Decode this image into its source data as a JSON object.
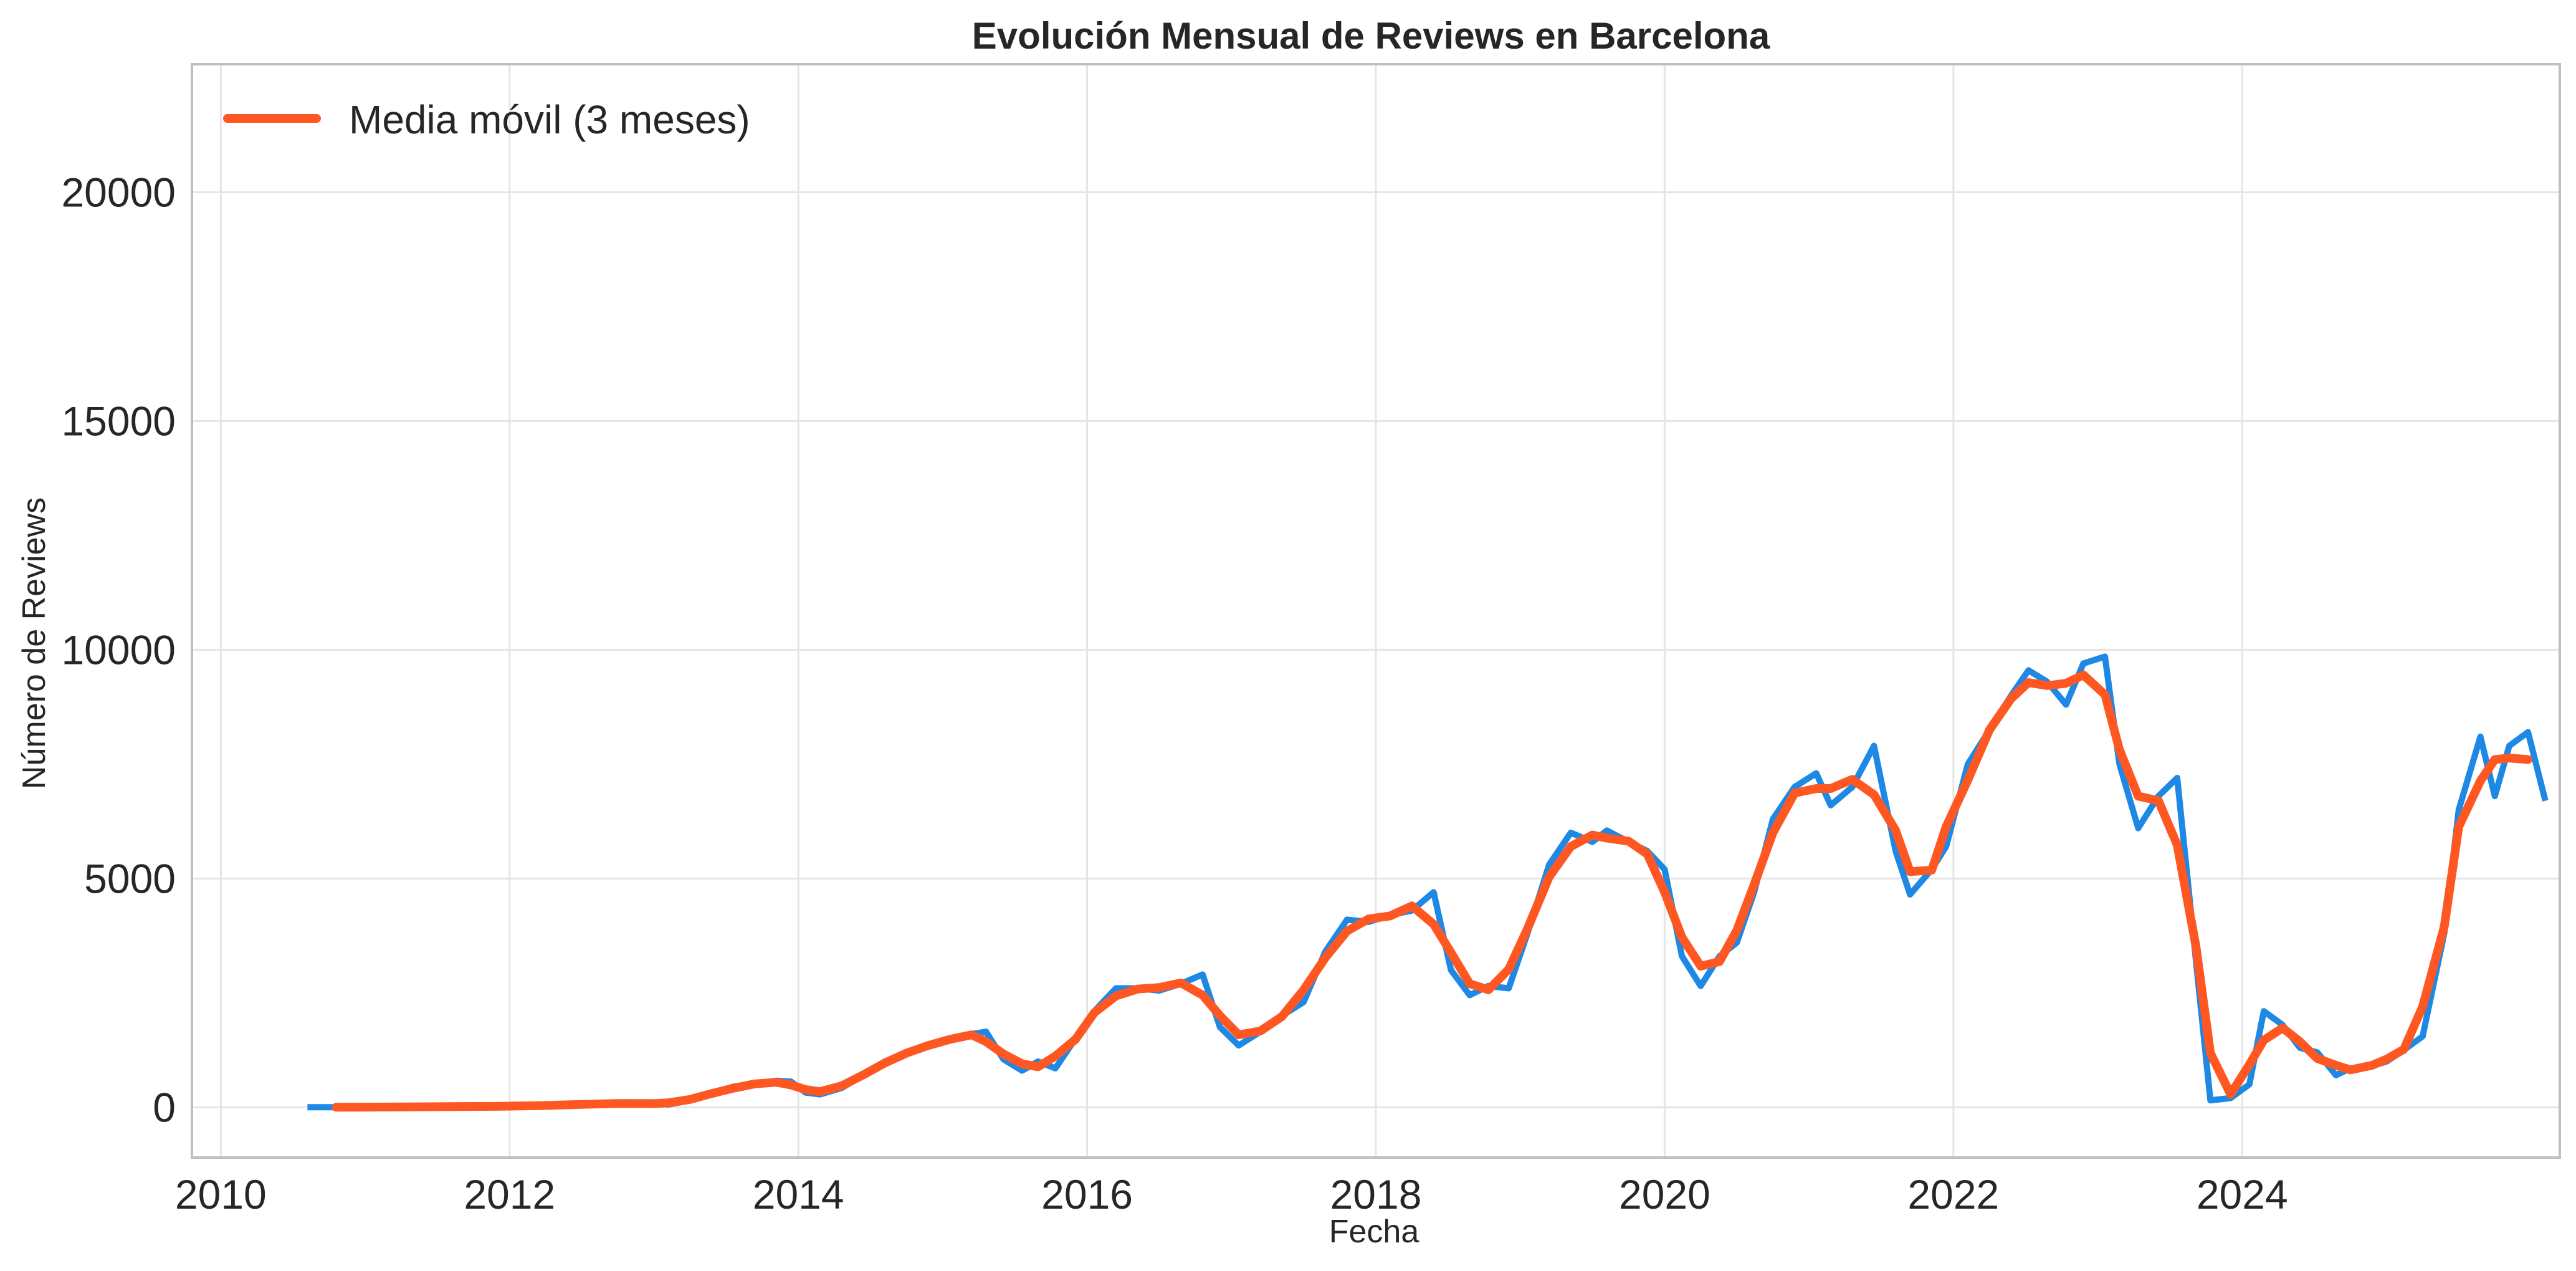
{
  "chart_data": {
    "type": "line",
    "title": "Evolución Mensual de Reviews en Barcelona",
    "xlabel": "Fecha",
    "ylabel": "Número de Reviews",
    "xlim": [
      2009.8,
      2026.2
    ],
    "ylim": [
      -1100,
      22800
    ],
    "x_ticks": [
      2010,
      2012,
      2014,
      2016,
      2018,
      2020,
      2022,
      2024
    ],
    "y_ticks": [
      0,
      5000,
      10000,
      15000,
      20000
    ],
    "grid": true,
    "legend": {
      "placement": "upper-left",
      "entries": [
        "Media móvil (3 meses)"
      ]
    },
    "colors": {
      "monthly": "#1e88e5",
      "rolling": "#ff5722"
    },
    "series": [
      {
        "key": "monthly",
        "color": "#1e88e5",
        "points": [
          [
            2010.6,
            0
          ],
          [
            2010.8,
            0
          ],
          [
            2011.0,
            0
          ],
          [
            2011.3,
            5
          ],
          [
            2011.6,
            20
          ],
          [
            2011.9,
            20
          ],
          [
            2012.2,
            15
          ],
          [
            2012.5,
            70
          ],
          [
            2012.75,
            100
          ],
          [
            2013.0,
            80
          ],
          [
            2013.1,
            60
          ],
          [
            2013.25,
            150
          ],
          [
            2013.4,
            300
          ],
          [
            2013.55,
            450
          ],
          [
            2013.7,
            500
          ],
          [
            2013.85,
            580
          ],
          [
            2013.95,
            560
          ],
          [
            2014.05,
            320
          ],
          [
            2014.15,
            280
          ],
          [
            2014.3,
            420
          ],
          [
            2014.45,
            700
          ],
          [
            2014.6,
            1000
          ],
          [
            2014.75,
            1200
          ],
          [
            2014.9,
            1350
          ],
          [
            2015.05,
            1500
          ],
          [
            2015.2,
            1600
          ],
          [
            2015.3,
            1650
          ],
          [
            2015.42,
            1050
          ],
          [
            2015.55,
            800
          ],
          [
            2015.66,
            1000
          ],
          [
            2015.78,
            850
          ],
          [
            2015.92,
            1500
          ],
          [
            2016.05,
            2100
          ],
          [
            2016.2,
            2600
          ],
          [
            2016.35,
            2600
          ],
          [
            2016.5,
            2550
          ],
          [
            2016.65,
            2700
          ],
          [
            2016.8,
            2900
          ],
          [
            2016.92,
            1750
          ],
          [
            2017.05,
            1350
          ],
          [
            2017.2,
            1650
          ],
          [
            2017.35,
            2000
          ],
          [
            2017.5,
            2300
          ],
          [
            2017.65,
            3400
          ],
          [
            2017.8,
            4100
          ],
          [
            2017.95,
            4050
          ],
          [
            2018.1,
            4200
          ],
          [
            2018.25,
            4300
          ],
          [
            2018.4,
            4700
          ],
          [
            2018.52,
            3000
          ],
          [
            2018.65,
            2450
          ],
          [
            2018.78,
            2650
          ],
          [
            2018.92,
            2600
          ],
          [
            2019.05,
            3800
          ],
          [
            2019.2,
            5300
          ],
          [
            2019.35,
            6000
          ],
          [
            2019.5,
            5800
          ],
          [
            2019.6,
            6050
          ],
          [
            2019.75,
            5800
          ],
          [
            2019.88,
            5600
          ],
          [
            2020.0,
            5200
          ],
          [
            2020.12,
            3300
          ],
          [
            2020.25,
            2650
          ],
          [
            2020.38,
            3300
          ],
          [
            2020.5,
            3600
          ],
          [
            2020.62,
            4700
          ],
          [
            2020.75,
            6300
          ],
          [
            2020.9,
            7000
          ],
          [
            2021.05,
            7300
          ],
          [
            2021.15,
            6600
          ],
          [
            2021.3,
            7000
          ],
          [
            2021.45,
            7900
          ],
          [
            2021.6,
            5600
          ],
          [
            2021.7,
            4650
          ],
          [
            2021.85,
            5200
          ],
          [
            2021.95,
            5700
          ],
          [
            2022.1,
            7500
          ],
          [
            2022.25,
            8250
          ],
          [
            2022.4,
            9000
          ],
          [
            2022.52,
            9550
          ],
          [
            2022.65,
            9300
          ],
          [
            2022.78,
            8800
          ],
          [
            2022.9,
            9700
          ],
          [
            2023.05,
            9850
          ],
          [
            2023.15,
            7500
          ],
          [
            2023.28,
            6100
          ],
          [
            2023.42,
            6800
          ],
          [
            2023.55,
            7200
          ],
          [
            2023.68,
            3200
          ],
          [
            2023.78,
            150
          ],
          [
            2023.92,
            200
          ],
          [
            2024.05,
            500
          ],
          [
            2024.15,
            2100
          ],
          [
            2024.28,
            1800
          ],
          [
            2024.4,
            1300
          ],
          [
            2024.52,
            1200
          ],
          [
            2024.65,
            700
          ],
          [
            2024.75,
            850
          ],
          [
            2024.9,
            900
          ],
          [
            2025.0,
            1000
          ],
          [
            2025.12,
            1250
          ],
          [
            2025.25,
            1550
          ],
          [
            2025.4,
            3800
          ],
          [
            2025.5,
            6500
          ],
          [
            2025.65,
            8100
          ],
          [
            2025.75,
            6800
          ],
          [
            2025.85,
            7900
          ],
          [
            2025.98,
            8200
          ],
          [
            2026.1,
            6700
          ]
        ]
      }
    ]
  }
}
